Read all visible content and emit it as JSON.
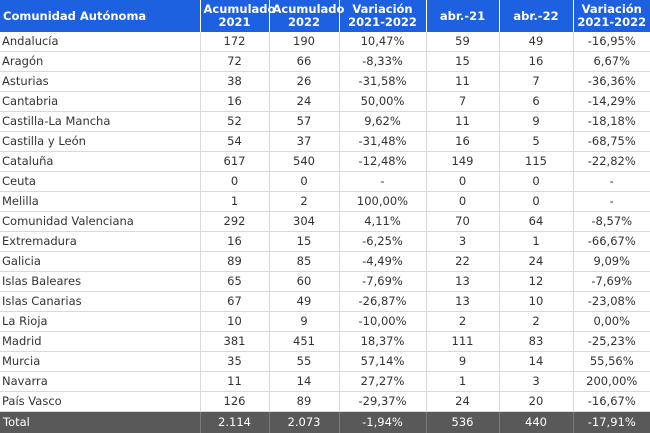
{
  "table": {
    "headers": [
      [
        "Comunidad Autónoma"
      ],
      [
        "Acumulado",
        "2021"
      ],
      [
        "Acumulado",
        "2022"
      ],
      [
        "Variación",
        "2021-2022"
      ],
      [
        "abr.-21"
      ],
      [
        "abr.-22"
      ],
      [
        "Variación",
        "2021-2022"
      ]
    ],
    "rows": [
      [
        "Andalucía",
        "172",
        "190",
        "10,47%",
        "59",
        "49",
        "-16,95%"
      ],
      [
        "Aragón",
        "72",
        "66",
        "-8,33%",
        "15",
        "16",
        "6,67%"
      ],
      [
        "Asturias",
        "38",
        "26",
        "-31,58%",
        "11",
        "7",
        "-36,36%"
      ],
      [
        "Cantabria",
        "16",
        "24",
        "50,00%",
        "7",
        "6",
        "-14,29%"
      ],
      [
        "Castilla-La Mancha",
        "52",
        "57",
        "9,62%",
        "11",
        "9",
        "-18,18%"
      ],
      [
        "Castilla y León",
        "54",
        "37",
        "-31,48%",
        "16",
        "5",
        "-68,75%"
      ],
      [
        "Cataluña",
        "617",
        "540",
        "-12,48%",
        "149",
        "115",
        "-22,82%"
      ],
      [
        "Ceuta",
        "0",
        "0",
        "-",
        "0",
        "0",
        "-"
      ],
      [
        "Melilla",
        "1",
        "2",
        "100,00%",
        "0",
        "0",
        "-"
      ],
      [
        "Comunidad Valenciana",
        "292",
        "304",
        "4,11%",
        "70",
        "64",
        "-8,57%"
      ],
      [
        "Extremadura",
        "16",
        "15",
        "-6,25%",
        "3",
        "1",
        "-66,67%"
      ],
      [
        "Galicia",
        "89",
        "85",
        "-4,49%",
        "22",
        "24",
        "9,09%"
      ],
      [
        "Islas Baleares",
        "65",
        "60",
        "-7,69%",
        "13",
        "12",
        "-7,69%"
      ],
      [
        "Islas Canarias",
        "67",
        "49",
        "-26,87%",
        "13",
        "10",
        "-23,08%"
      ],
      [
        "La Rioja",
        "10",
        "9",
        "-10,00%",
        "2",
        "2",
        "0,00%"
      ],
      [
        "Madrid",
        "381",
        "451",
        "18,37%",
        "111",
        "83",
        "-25,23%"
      ],
      [
        "Murcia",
        "35",
        "55",
        "57,14%",
        "9",
        "14",
        "55,56%"
      ],
      [
        "Navarra",
        "11",
        "14",
        "27,27%",
        "1",
        "3",
        "200,00%"
      ],
      [
        "País Vasco",
        "126",
        "89",
        "-29,37%",
        "24",
        "20",
        "-16,67%"
      ]
    ],
    "total": [
      "Total",
      "2.114",
      "2.073",
      "-1,94%",
      "536",
      "440",
      "-17,91%"
    ]
  },
  "colors": {
    "header_bg": "#1d60e0",
    "header_text": "#ffffff",
    "total_bg": "#595959",
    "grid": "#d9d9d9"
  }
}
